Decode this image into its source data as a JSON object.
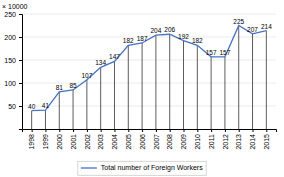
{
  "chart_data": {
    "type": "line",
    "ylabel": "× 10000",
    "x": [
      1998,
      1999,
      2000,
      2001,
      2002,
      2003,
      2004,
      2005,
      2006,
      2007,
      2008,
      2009,
      2010,
      2011,
      2012,
      2013,
      2014,
      2015
    ],
    "series": [
      {
        "name": "Total number of Foreign Workers",
        "color": "#4472C4",
        "values": [
          40,
          41,
          81,
          85,
          107,
          134,
          147,
          182,
          187,
          204,
          206,
          192,
          182,
          157,
          157,
          225,
          207,
          214
        ]
      }
    ],
    "xlim": [
      1997.3,
      2015.7
    ],
    "xticks": [
      1998,
      1999,
      2000,
      2001,
      2002,
      2003,
      2004,
      2005,
      2006,
      2007,
      2008,
      2009,
      2010,
      2011,
      2012,
      2013,
      2014,
      2015
    ],
    "ylim": [
      0,
      250
    ],
    "yticks": [
      50,
      100,
      150,
      200,
      250
    ],
    "grid": true,
    "data_labels": true,
    "legend": "bottom"
  }
}
